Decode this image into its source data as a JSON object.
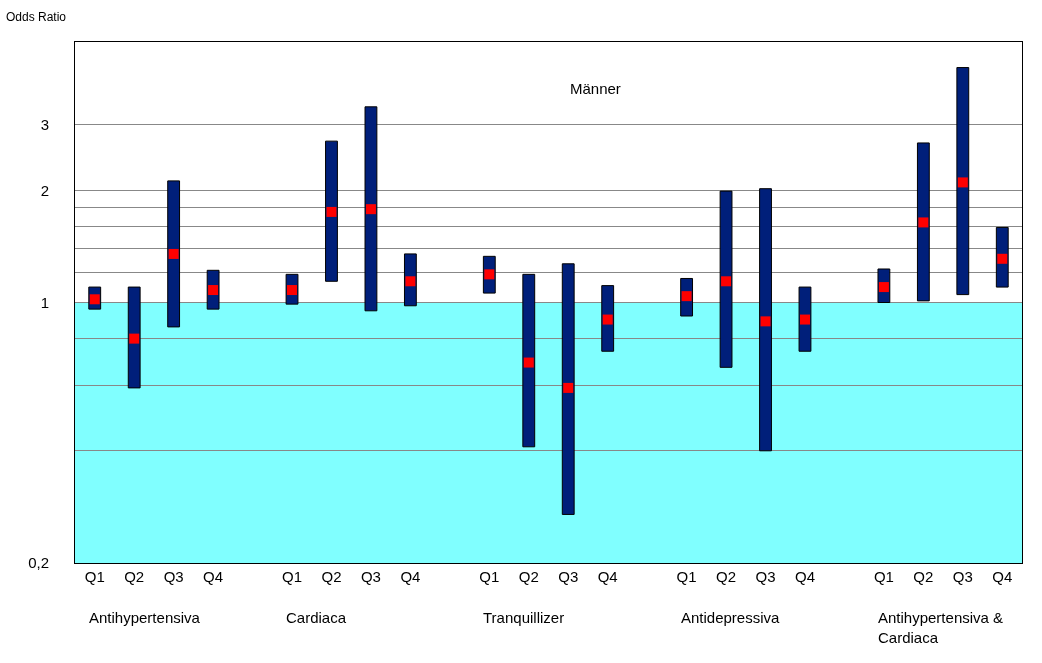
{
  "chart_data": {
    "type": "bar",
    "ylabel": "Odds Ratio",
    "categories": [
      "Q1",
      "Q2",
      "Q3",
      "Q4",
      null,
      "Q1",
      "Q2",
      "Q3",
      "Q4",
      null,
      "Q1",
      "Q2",
      "Q3",
      "Q4",
      null,
      "Q1",
      "Q2",
      "Q3",
      "Q4",
      null,
      "Q1",
      "Q2",
      "Q3",
      "Q4"
    ],
    "series": [
      {
        "color": "#001f7a",
        "base": [
          0.96,
          0.59,
          0.86,
          0.96,
          null,
          0.99,
          1.14,
          0.95,
          0.98,
          null,
          1.06,
          0.41,
          0.27,
          0.74,
          null,
          0.92,
          0.67,
          0.4,
          0.74,
          null,
          1.0,
          1.01,
          1.05,
          1.1
        ],
        "values": [
          0.14,
          0.51,
          1.26,
          0.26,
          null,
          0.2,
          1.57,
          2.4,
          0.37,
          null,
          0.27,
          0.78,
          1.0,
          0.37,
          null,
          0.24,
          1.32,
          1.62,
          0.36,
          null,
          0.23,
          1.67,
          3.22,
          0.49
        ]
      },
      {
        "type": "scatter",
        "color": "#ff0000",
        "marker": "square",
        "values": [
          1.02,
          0.8,
          1.35,
          1.08,
          null,
          1.08,
          1.75,
          1.78,
          1.14,
          null,
          1.19,
          0.69,
          0.59,
          0.9,
          null,
          1.04,
          1.14,
          0.89,
          0.9,
          null,
          1.1,
          1.64,
          2.1,
          1.31
        ]
      }
    ],
    "log": true,
    "ylim": [
      0.2,
      5
    ],
    "yticks": [
      {
        "value": 0.2,
        "label": "0,2"
      },
      {
        "value": 0.4,
        "label": null
      },
      {
        "value": 0.6,
        "label": null
      },
      {
        "value": 0.8,
        "label": null
      },
      1,
      {
        "value": 1.2,
        "label": null
      },
      {
        "value": 1.4,
        "label": null
      },
      {
        "value": 1.6,
        "label": null
      },
      {
        "value": 1.8,
        "label": null
      },
      2,
      3
    ],
    "bands": [
      {
        "axis": "y",
        "from": 0.2,
        "to": 1,
        "color": "#80ffff"
      }
    ],
    "grid": "y",
    "annotations": [
      "Männer",
      "Antihypertensiva",
      "Cardiaca",
      "Tranquillizer",
      "Antidepressiva",
      "Antihypertensiva & Cardiaca"
    ]
  }
}
